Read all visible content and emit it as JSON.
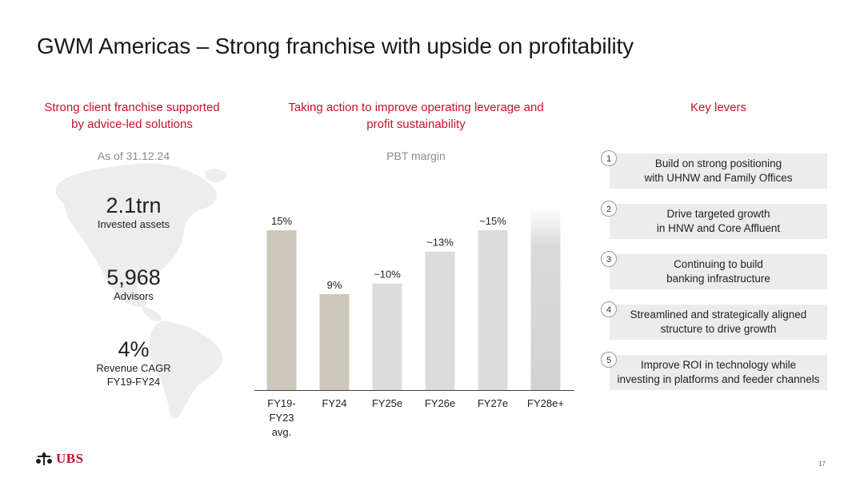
{
  "title": "GWM Americas – Strong franchise with upside on profitability",
  "left": {
    "heading": "Strong client franchise supported\nby advice-led solutions",
    "as_of": "As of 31.12.24",
    "stats": [
      {
        "value": "2.1trn",
        "label": "Invested assets"
      },
      {
        "value": "5,968",
        "label": "Advisors"
      },
      {
        "value": "4%",
        "label": "Revenue CAGR\nFY19-FY24"
      }
    ]
  },
  "middle": {
    "heading": "Taking action to improve operating leverage and\nprofit sustainability",
    "subheading": "PBT margin"
  },
  "chart_data": {
    "type": "bar",
    "title": "PBT margin",
    "categories": [
      "FY19-\nFY23\navg.",
      "FY24",
      "FY25e",
      "FY26e",
      "FY27e",
      "FY28e+"
    ],
    "values": [
      15,
      9,
      10,
      13,
      15,
      null
    ],
    "labels": [
      "15%",
      "9%",
      "~10%",
      "~13%",
      "~15%",
      ""
    ],
    "ylim": [
      0,
      20
    ],
    "grid": false,
    "colors": [
      "#cdc8bb",
      "#cdc8bb",
      "#dcdcdc",
      "#dcdcdc",
      "#dcdcdc",
      "#d4d4d4"
    ],
    "last_bar_style": "fading open-ended bar"
  },
  "right": {
    "heading": "Key levers",
    "levers": [
      {
        "num": "1",
        "text": "Build on strong positioning\nwith UHNW and Family Offices"
      },
      {
        "num": "2",
        "text": "Drive targeted growth\nin HNW and Core Affluent"
      },
      {
        "num": "3",
        "text": "Continuing to build\nbanking infrastructure"
      },
      {
        "num": "4",
        "text": "Streamlined and strategically aligned\nstructure to drive growth"
      },
      {
        "num": "5",
        "text": "Improve ROI in technology while\ninvesting in platforms and feeder channels"
      }
    ]
  },
  "footer": {
    "logo": "UBS",
    "page": "17"
  },
  "colors": {
    "accent": "#c8102e",
    "lever_bg": "#ececec",
    "map": "#ededed"
  }
}
